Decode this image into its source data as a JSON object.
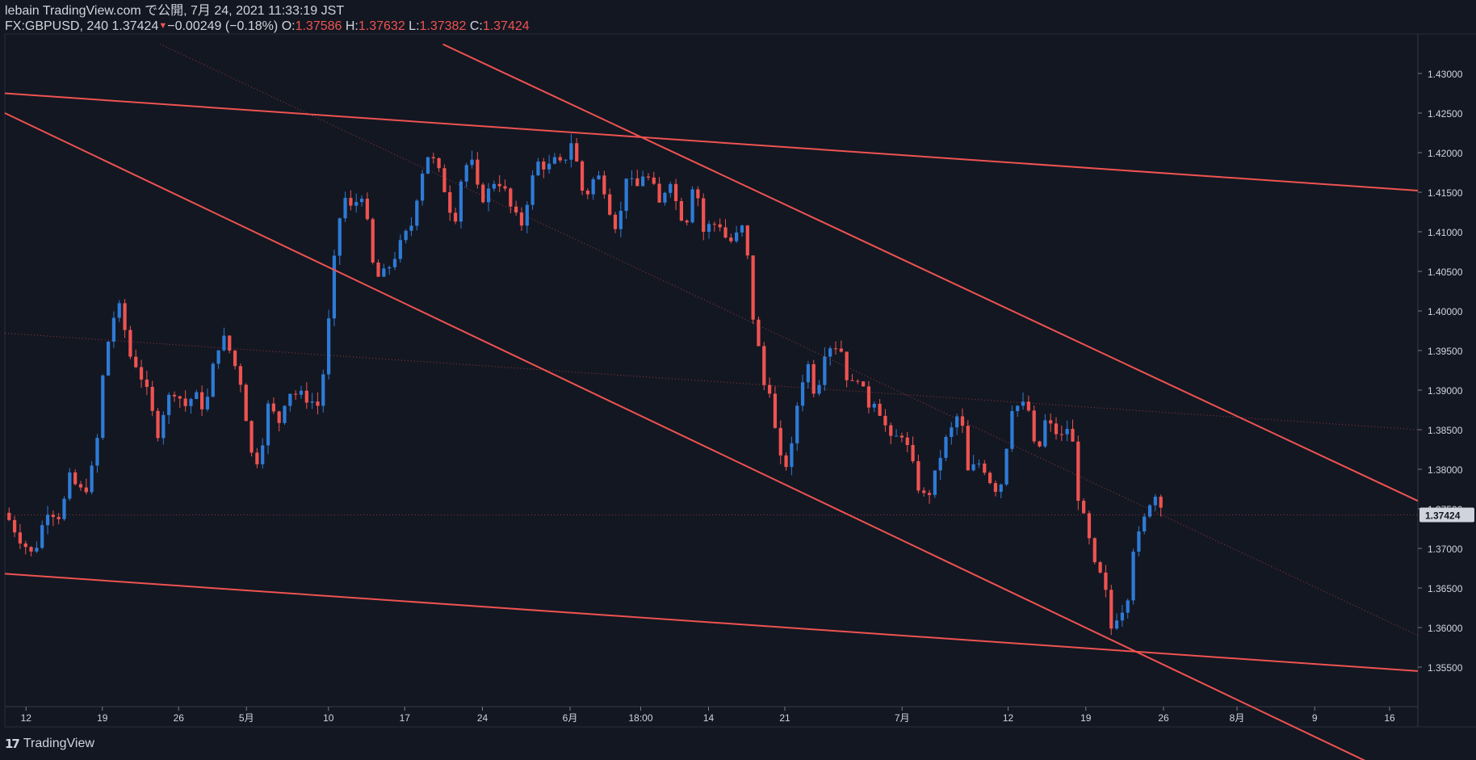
{
  "header": {
    "publisher": "lebain TradingView.com で公開, 7月 24, 2021 11:33:19 JST",
    "symbol": "FX:GBPUSD, 240",
    "last": "1.37424",
    "change": "−0.00249 (−0.18%)",
    "o_label": "O:",
    "o_value": "1.37586",
    "h_label": "H:",
    "h_value": "1.37632",
    "l_label": "L:",
    "l_value": "1.37382",
    "c_label": "C:",
    "c_value": "1.37424",
    "change_direction_icon": "triangle-down-icon"
  },
  "footer": {
    "logo_icon": "tradingview-logo-icon",
    "brand": "TradingView"
  },
  "colors": {
    "background": "#131722",
    "up": "#2e7bd6",
    "down": "#ef5350",
    "trendline": "#ef5350",
    "text": "#d1d4dc",
    "price_tag_bg": "#d1d4dc",
    "price_tag_text": "#131722"
  },
  "chart_data": {
    "type": "candlestick",
    "symbol": "FX:GBPUSD",
    "interval": "240",
    "ylim": [
      1.35,
      1.435
    ],
    "y_ticks": [
      "1.43000",
      "1.42500",
      "1.42000",
      "1.41500",
      "1.41000",
      "1.40500",
      "1.40000",
      "1.39500",
      "1.39000",
      "1.38500",
      "1.38000",
      "1.37500",
      "1.37000",
      "1.36500",
      "1.36000",
      "1.35500"
    ],
    "x_ticks": [
      "12",
      "19",
      "26",
      "5月",
      "10",
      "17",
      "24",
      "6月",
      "18:00",
      "14",
      "21",
      "7月",
      "12",
      "19",
      "26",
      "8月",
      "9",
      "16"
    ],
    "x_tick_pos": [
      0.015,
      0.069,
      0.123,
      0.171,
      0.229,
      0.283,
      0.338,
      0.4,
      0.45,
      0.498,
      0.552,
      0.635,
      0.71,
      0.765,
      0.82,
      0.872,
      0.927,
      0.98
    ],
    "current_price": "1.37424",
    "current_price_value": 1.37424,
    "path": [
      [
        0.0,
        1.3745
      ],
      [
        0.01,
        1.3715
      ],
      [
        0.02,
        1.369
      ],
      [
        0.03,
        1.375
      ],
      [
        0.04,
        1.374
      ],
      [
        0.045,
        1.379
      ],
      [
        0.055,
        1.377
      ],
      [
        0.06,
        1.3785
      ],
      [
        0.065,
        1.383
      ],
      [
        0.07,
        1.393
      ],
      [
        0.076,
        1.399
      ],
      [
        0.082,
        1.4005
      ],
      [
        0.088,
        1.3945
      ],
      [
        0.094,
        1.393
      ],
      [
        0.1,
        1.39
      ],
      [
        0.108,
        1.3845
      ],
      [
        0.114,
        1.3885
      ],
      [
        0.12,
        1.39
      ],
      [
        0.128,
        1.388
      ],
      [
        0.134,
        1.3895
      ],
      [
        0.142,
        1.3875
      ],
      [
        0.15,
        1.3955
      ],
      [
        0.156,
        1.3965
      ],
      [
        0.162,
        1.3935
      ],
      [
        0.168,
        1.3905
      ],
      [
        0.174,
        1.382
      ],
      [
        0.18,
        1.381
      ],
      [
        0.186,
        1.388
      ],
      [
        0.194,
        1.386
      ],
      [
        0.2,
        1.39
      ],
      [
        0.206,
        1.3895
      ],
      [
        0.214,
        1.389
      ],
      [
        0.222,
        1.388
      ],
      [
        0.226,
        1.393
      ],
      [
        0.23,
        1.4
      ],
      [
        0.235,
        1.41
      ],
      [
        0.24,
        1.4145
      ],
      [
        0.246,
        1.4125
      ],
      [
        0.252,
        1.4155
      ],
      [
        0.256,
        1.4115
      ],
      [
        0.26,
        1.406
      ],
      [
        0.265,
        1.404
      ],
      [
        0.27,
        1.405
      ],
      [
        0.276,
        1.407
      ],
      [
        0.282,
        1.409
      ],
      [
        0.288,
        1.411
      ],
      [
        0.294,
        1.417
      ],
      [
        0.3,
        1.42
      ],
      [
        0.306,
        1.418
      ],
      [
        0.312,
        1.415
      ],
      [
        0.318,
        1.411
      ],
      [
        0.324,
        1.418
      ],
      [
        0.33,
        1.419
      ],
      [
        0.336,
        1.414
      ],
      [
        0.342,
        1.415
      ],
      [
        0.348,
        1.417
      ],
      [
        0.354,
        1.415
      ],
      [
        0.36,
        1.412
      ],
      [
        0.366,
        1.411
      ],
      [
        0.372,
        1.416
      ],
      [
        0.378,
        1.419
      ],
      [
        0.384,
        1.418
      ],
      [
        0.39,
        1.419
      ],
      [
        0.395,
        1.418
      ],
      [
        0.4,
        1.422
      ],
      [
        0.405,
        1.4185
      ],
      [
        0.41,
        1.414
      ],
      [
        0.416,
        1.4165
      ],
      [
        0.422,
        1.417
      ],
      [
        0.428,
        1.413
      ],
      [
        0.434,
        1.41
      ],
      [
        0.44,
        1.4175
      ],
      [
        0.446,
        1.415
      ],
      [
        0.452,
        1.4175
      ],
      [
        0.458,
        1.416
      ],
      [
        0.464,
        1.413
      ],
      [
        0.47,
        1.4175
      ],
      [
        0.476,
        1.413
      ],
      [
        0.482,
        1.411
      ],
      [
        0.488,
        1.4175
      ],
      [
        0.494,
        1.41
      ],
      [
        0.5,
        1.411
      ],
      [
        0.506,
        1.411
      ],
      [
        0.512,
        1.4085
      ],
      [
        0.518,
        1.4095
      ],
      [
        0.524,
        1.411
      ],
      [
        0.528,
        1.4
      ],
      [
        0.532,
        1.398
      ],
      [
        0.536,
        1.39
      ],
      [
        0.54,
        1.392
      ],
      [
        0.545,
        1.385
      ],
      [
        0.55,
        1.38
      ],
      [
        0.556,
        1.3815
      ],
      [
        0.562,
        1.39
      ],
      [
        0.568,
        1.3935
      ],
      [
        0.574,
        1.389
      ],
      [
        0.58,
        1.395
      ],
      [
        0.586,
        1.396
      ],
      [
        0.592,
        1.395
      ],
      [
        0.598,
        1.39
      ],
      [
        0.604,
        1.392
      ],
      [
        0.61,
        1.388
      ],
      [
        0.616,
        1.389
      ],
      [
        0.622,
        1.386
      ],
      [
        0.628,
        1.383
      ],
      [
        0.634,
        1.385
      ],
      [
        0.64,
        1.382
      ],
      [
        0.646,
        1.378
      ],
      [
        0.652,
        1.376
      ],
      [
        0.658,
        1.379
      ],
      [
        0.664,
        1.383
      ],
      [
        0.67,
        1.385
      ],
      [
        0.676,
        1.3875
      ],
      [
        0.682,
        1.379
      ],
      [
        0.688,
        1.381
      ],
      [
        0.694,
        1.38
      ],
      [
        0.7,
        1.3775
      ],
      [
        0.706,
        1.3785
      ],
      [
        0.712,
        1.388
      ],
      [
        0.718,
        1.388
      ],
      [
        0.724,
        1.388
      ],
      [
        0.73,
        1.381
      ],
      [
        0.736,
        1.386
      ],
      [
        0.742,
        1.385
      ],
      [
        0.748,
        1.384
      ],
      [
        0.754,
        1.386
      ],
      [
        0.76,
        1.376
      ],
      [
        0.766,
        1.372
      ],
      [
        0.772,
        1.367
      ],
      [
        0.778,
        1.366
      ],
      [
        0.782,
        1.3595
      ],
      [
        0.788,
        1.362
      ],
      [
        0.794,
        1.363
      ],
      [
        0.798,
        1.37
      ],
      [
        0.804,
        1.372
      ],
      [
        0.81,
        1.376
      ],
      [
        0.816,
        1.377
      ],
      [
        0.822,
        1.374
      ]
    ],
    "trendlines": [
      {
        "name": "upper-resistance",
        "p1": [
          0.0,
          1.4275
        ],
        "p2": [
          1.0,
          1.4152
        ]
      },
      {
        "name": "lower-support",
        "p1": [
          0.0,
          1.3668
        ],
        "p2": [
          1.0,
          1.3545
        ]
      },
      {
        "name": "channel-upper",
        "p1": [
          0.31,
          1.4337
        ],
        "p2": [
          1.0,
          1.376
        ]
      },
      {
        "name": "channel-lower",
        "p1": [
          0.0,
          1.425
        ],
        "p2": [
          1.0,
          1.34
        ]
      }
    ],
    "dotted_lines": [
      {
        "name": "midline-long",
        "p1": [
          0.0,
          1.3972
        ],
        "p2": [
          1.0,
          1.385
        ]
      },
      {
        "name": "midline-channel",
        "p1": [
          0.11,
          1.4337
        ],
        "p2": [
          1.0,
          1.359
        ]
      }
    ]
  }
}
